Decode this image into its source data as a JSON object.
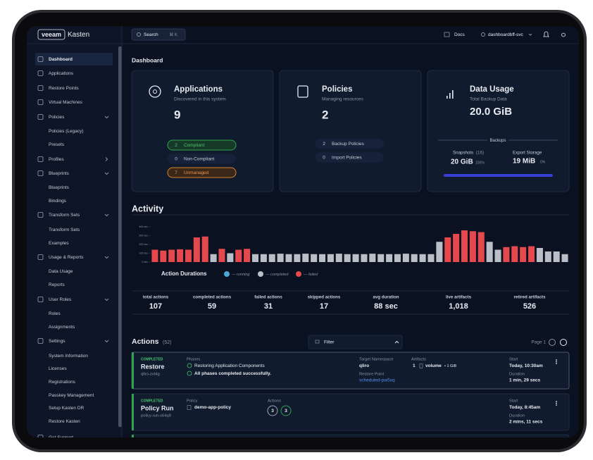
{
  "topbar": {
    "brand": "veeam",
    "product": "Kasten",
    "search": "Search",
    "shortcut": "⌘ K",
    "docs": "Docs",
    "user": "dashboardbff-svc"
  },
  "sidebar": [
    "Dashboard",
    "Applications",
    "Restore Points",
    "Virtual Machines",
    "Policies",
    "Policies (Legacy)",
    "Presets",
    "Profiles",
    "Blueprints",
    "Blueprints",
    "Bindings",
    "Transform Sets",
    "Transform Sets",
    "Examples",
    "Usage & Reports",
    "Data Usage",
    "Reports",
    "User Roles",
    "Roles",
    "Assignments",
    "Settings",
    "System Information",
    "Licenses",
    "Registrations",
    "Passkey Management",
    "Setup Kasten DR",
    "Restore Kasten",
    "Get Support"
  ],
  "page_title": "Dashboard",
  "cards": [
    {
      "title": "Applications",
      "subtitle": "Discovered in this system",
      "value": 9,
      "items": [
        {
          "count": 2,
          "label": "Compliant"
        },
        {
          "count": 0,
          "label": "Non-Compliant"
        },
        {
          "count": 7,
          "label": "Unmanaged"
        }
      ]
    },
    {
      "title": "Policies",
      "subtitle": "Managing resources",
      "value": 2,
      "items": [
        {
          "count": 2,
          "label": "Backup Policies"
        },
        {
          "count": 0,
          "label": "Import Policies"
        }
      ]
    }
  ],
  "data_usage": {
    "title": "Data Usage",
    "subtitle": "Total Backup Data",
    "value": "20.0 GiB",
    "section": "Backups",
    "snapshots": {
      "label": "Snapshots",
      "count": "(16)",
      "value": "20 GiB",
      "percent": "100%"
    },
    "export": {
      "label": "Export Storage",
      "value": "19 MiB",
      "percent": "0%"
    }
  },
  "activity": {
    "title": "Activity",
    "stats": [
      {
        "label": "total actions",
        "value": 107
      },
      {
        "label": "completed actions",
        "value": 59
      },
      {
        "label": "failed actions",
        "value": 31
      },
      {
        "label": "skipped actions",
        "value": 17
      },
      {
        "label": "avg duration",
        "value": "88 sec"
      },
      {
        "label": "live artifacts",
        "value": "1,018"
      },
      {
        "label": "retired artifacts",
        "value": 526
      }
    ]
  },
  "chart_data": {
    "type": "bar",
    "legend_title": "Action Durations",
    "ylim": [
      0,
      400
    ],
    "yticks": [
      {
        "value": 0,
        "label": "0 sec"
      },
      {
        "value": 100,
        "label": "100 sec"
      },
      {
        "value": 200,
        "label": "200 sec"
      },
      {
        "value": 300,
        "label": "300 sec"
      },
      {
        "value": 400,
        "label": "400 sec"
      }
    ],
    "series": [
      {
        "name": "— running",
        "color": "#4aa8d8",
        "values": [
          null,
          null,
          null,
          null,
          null,
          null,
          null,
          null,
          null,
          null,
          null,
          null,
          null,
          null,
          null,
          null,
          null,
          null,
          null,
          null,
          null,
          null,
          null,
          null,
          null,
          null,
          null,
          null,
          null,
          null,
          null,
          null,
          null,
          null,
          null,
          null,
          null,
          null,
          null,
          null,
          null,
          null,
          null,
          null,
          null,
          null,
          null,
          null,
          null,
          null
        ]
      },
      {
        "name": "— completed",
        "color": "#b9bec7",
        "values": [
          null,
          null,
          null,
          null,
          null,
          null,
          null,
          90,
          null,
          100,
          null,
          null,
          90,
          90,
          90,
          95,
          90,
          90,
          95,
          90,
          90,
          90,
          95,
          90,
          90,
          90,
          95,
          90,
          90,
          90,
          95,
          90,
          90,
          90,
          230,
          null,
          null,
          null,
          null,
          null,
          230,
          140,
          null,
          null,
          null,
          null,
          160,
          120,
          120,
          90
        ]
      },
      {
        "name": "— failed",
        "color": "#e5484d",
        "values": [
          140,
          130,
          140,
          145,
          140,
          280,
          290,
          null,
          150,
          null,
          140,
          150,
          null,
          null,
          null,
          null,
          null,
          null,
          null,
          null,
          null,
          null,
          null,
          null,
          null,
          null,
          null,
          null,
          null,
          null,
          null,
          null,
          null,
          null,
          null,
          280,
          320,
          360,
          350,
          340,
          null,
          null,
          170,
          180,
          170,
          180,
          null,
          null,
          null,
          null
        ]
      }
    ]
  },
  "actions": {
    "title": "Actions",
    "count": "(52)",
    "filter": "Filter",
    "page": "Page 1",
    "rows": [
      {
        "status": "COMPLETED",
        "name": "Restore",
        "id": "qliro-zvt4g",
        "phases_label": "Phases",
        "phase": "Restoring Application Components",
        "phase_result": "All phases completed successfully.",
        "namespace_label": "Target Namespace",
        "namespace": "qliro",
        "restore_point_label": "Restore Point",
        "restore_point": "scheduled-pw5xq",
        "artifacts_label": "Artifacts",
        "artifact_count": 1,
        "artifact": "volume",
        "artifact_size": "• 1 GiB",
        "start_label": "Start",
        "start": "Today, 10:30am",
        "duration_label": "Duration",
        "duration": "1 min, 29 secs"
      },
      {
        "status": "COMPLETED",
        "name": "Policy Run",
        "id": "policy-run-s64q9",
        "policy_label": "Policy",
        "policy": "demo-app-policy",
        "actions_label": "Actions",
        "actions": [
          3,
          3
        ],
        "start_label": "Start",
        "start": "Today, 8:45am",
        "duration_label": "Duration",
        "duration": "2 mins, 11 secs"
      }
    ]
  }
}
